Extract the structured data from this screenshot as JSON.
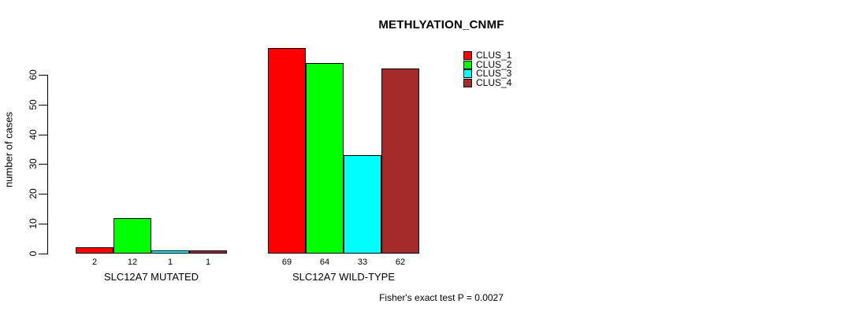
{
  "page": {
    "background": "#FFFFFF",
    "text_color": "#000000"
  },
  "chart_data": {
    "type": "bar",
    "title": "METHLYATION_CNMF",
    "ylabel": "number of cases",
    "xlabel": "",
    "categories": [
      "SLC12A7 MUTATED",
      "SLC12A7 WILD-TYPE"
    ],
    "series": [
      {
        "name": "CLUS_1",
        "color": "#FF0000",
        "values": [
          2,
          69
        ]
      },
      {
        "name": "CLUS_2",
        "color": "#00FF00",
        "values": [
          12,
          64
        ]
      },
      {
        "name": "CLUS_3",
        "color": "#00FFFF",
        "values": [
          1,
          33
        ]
      },
      {
        "name": "CLUS_4",
        "color": "#A52A2A",
        "values": [
          1,
          62
        ]
      }
    ],
    "bar_value_labels": [
      [
        2,
        12,
        1,
        1
      ],
      [
        69,
        64,
        33,
        62
      ]
    ],
    "yticks": [
      0,
      10,
      20,
      30,
      40,
      50,
      60
    ],
    "ylim": [
      0,
      60
    ],
    "grid": false,
    "legend_position": "top-right",
    "annotation": "Fisher's exact test P = 0.0027"
  }
}
